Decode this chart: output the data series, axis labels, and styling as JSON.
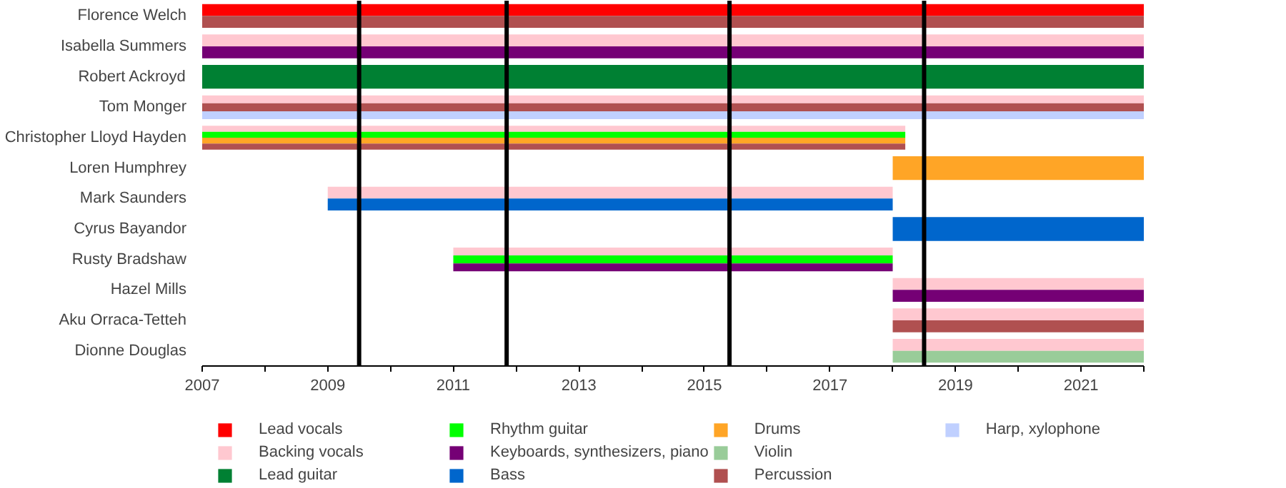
{
  "chart_data": {
    "type": "bar",
    "orientation": "horizontal",
    "categories": [
      "Florence Welch",
      "Isabella Summers",
      "Robert Ackroyd",
      "Tom Monger",
      "Christopher Lloyd Hayden",
      "Loren Humphrey",
      "Mark Saunders",
      "Cyrus Bayandor",
      "Rusty Bradshaw",
      "Hazel Mills",
      "Aku Orraca-Tetteh",
      "Dionne Douglas"
    ],
    "series": [
      {
        "name": "Lead vocals",
        "color": "#ff0000",
        "base": [
          2007,
          null,
          null,
          null,
          null,
          null,
          null,
          null,
          null,
          null,
          null,
          null
        ],
        "values": [
          15,
          null,
          null,
          null,
          null,
          null,
          null,
          null,
          null,
          null,
          null,
          null
        ]
      },
      {
        "name": "Backing vocals",
        "color": "#ffc8d0",
        "base": [
          null,
          2007,
          null,
          2007,
          2007,
          null,
          2009,
          null,
          2011,
          2018,
          2018,
          2018
        ],
        "values": [
          null,
          15,
          null,
          15,
          11.2,
          null,
          9,
          null,
          7,
          4,
          4,
          4
        ]
      },
      {
        "name": "Lead guitar",
        "color": "#008033",
        "base": [
          null,
          null,
          2007,
          null,
          null,
          null,
          null,
          null,
          null,
          null,
          null,
          null
        ],
        "values": [
          null,
          null,
          15,
          null,
          null,
          null,
          null,
          null,
          null,
          null,
          null,
          null
        ]
      },
      {
        "name": "Rhythm guitar",
        "color": "#00ff00",
        "base": [
          null,
          null,
          null,
          null,
          2007,
          null,
          null,
          null,
          2011,
          null,
          null,
          null
        ],
        "values": [
          null,
          null,
          null,
          null,
          11.2,
          null,
          null,
          null,
          7,
          null,
          null,
          null
        ]
      },
      {
        "name": "Keyboards, synthesizers, piano",
        "color": "#750075",
        "base": [
          null,
          2007,
          null,
          null,
          null,
          null,
          null,
          null,
          2011,
          2018,
          null,
          null
        ],
        "values": [
          null,
          15,
          null,
          null,
          null,
          null,
          null,
          null,
          7,
          4,
          null,
          null
        ]
      },
      {
        "name": "Bass",
        "color": "#0066cc",
        "base": [
          null,
          null,
          null,
          null,
          null,
          null,
          2009,
          2018,
          null,
          null,
          null,
          null
        ],
        "values": [
          null,
          null,
          null,
          null,
          null,
          null,
          9,
          4,
          null,
          null,
          null,
          null
        ]
      },
      {
        "name": "Drums",
        "color": "#ffa526",
        "base": [
          null,
          null,
          null,
          null,
          2007,
          2018,
          null,
          null,
          null,
          null,
          null,
          null
        ],
        "values": [
          null,
          null,
          null,
          null,
          11.2,
          4,
          null,
          null,
          null,
          null,
          null,
          null
        ]
      },
      {
        "name": "Violin",
        "color": "#99cc99",
        "base": [
          null,
          null,
          null,
          null,
          null,
          null,
          null,
          null,
          null,
          null,
          null,
          2018
        ],
        "values": [
          null,
          null,
          null,
          null,
          null,
          null,
          null,
          null,
          null,
          null,
          null,
          4
        ]
      },
      {
        "name": "Percussion",
        "color": "#b05050",
        "base": [
          2007,
          null,
          null,
          2007,
          2007,
          null,
          null,
          null,
          null,
          null,
          2018,
          null
        ],
        "values": [
          15,
          null,
          null,
          15,
          11.2,
          null,
          null,
          null,
          null,
          null,
          4,
          null
        ]
      },
      {
        "name": "Harp, xylophone",
        "color": "#c0d0ff",
        "base": [
          null,
          null,
          null,
          2007,
          null,
          null,
          null,
          null,
          null,
          null,
          null,
          null
        ],
        "values": [
          null,
          null,
          null,
          15,
          null,
          null,
          null,
          null,
          null,
          null,
          null,
          null
        ]
      }
    ],
    "xlim": [
      2007,
      2022
    ],
    "xticks": [
      2007,
      {
        "value": 2008,
        "label": null
      },
      2009,
      {
        "value": 2010,
        "label": null
      },
      2011,
      {
        "value": 2012,
        "label": null
      },
      2013,
      {
        "value": 2014,
        "label": null
      },
      2015,
      {
        "value": 2016,
        "label": null
      },
      2017,
      {
        "value": 2018,
        "label": null
      },
      2019,
      {
        "value": 2020,
        "label": null
      },
      2021,
      {
        "value": 2022,
        "label": null
      }
    ],
    "ref_lines": [
      {
        "axis": "x",
        "value": 2009.5,
        "color": "#000000"
      },
      {
        "axis": "x",
        "value": 2011.85,
        "color": "#000000"
      },
      {
        "axis": "x",
        "value": 2015.4,
        "color": "#000000"
      },
      {
        "axis": "x",
        "value": 2018.5,
        "color": "#000000"
      }
    ],
    "legend": "bottom",
    "grid": false
  }
}
